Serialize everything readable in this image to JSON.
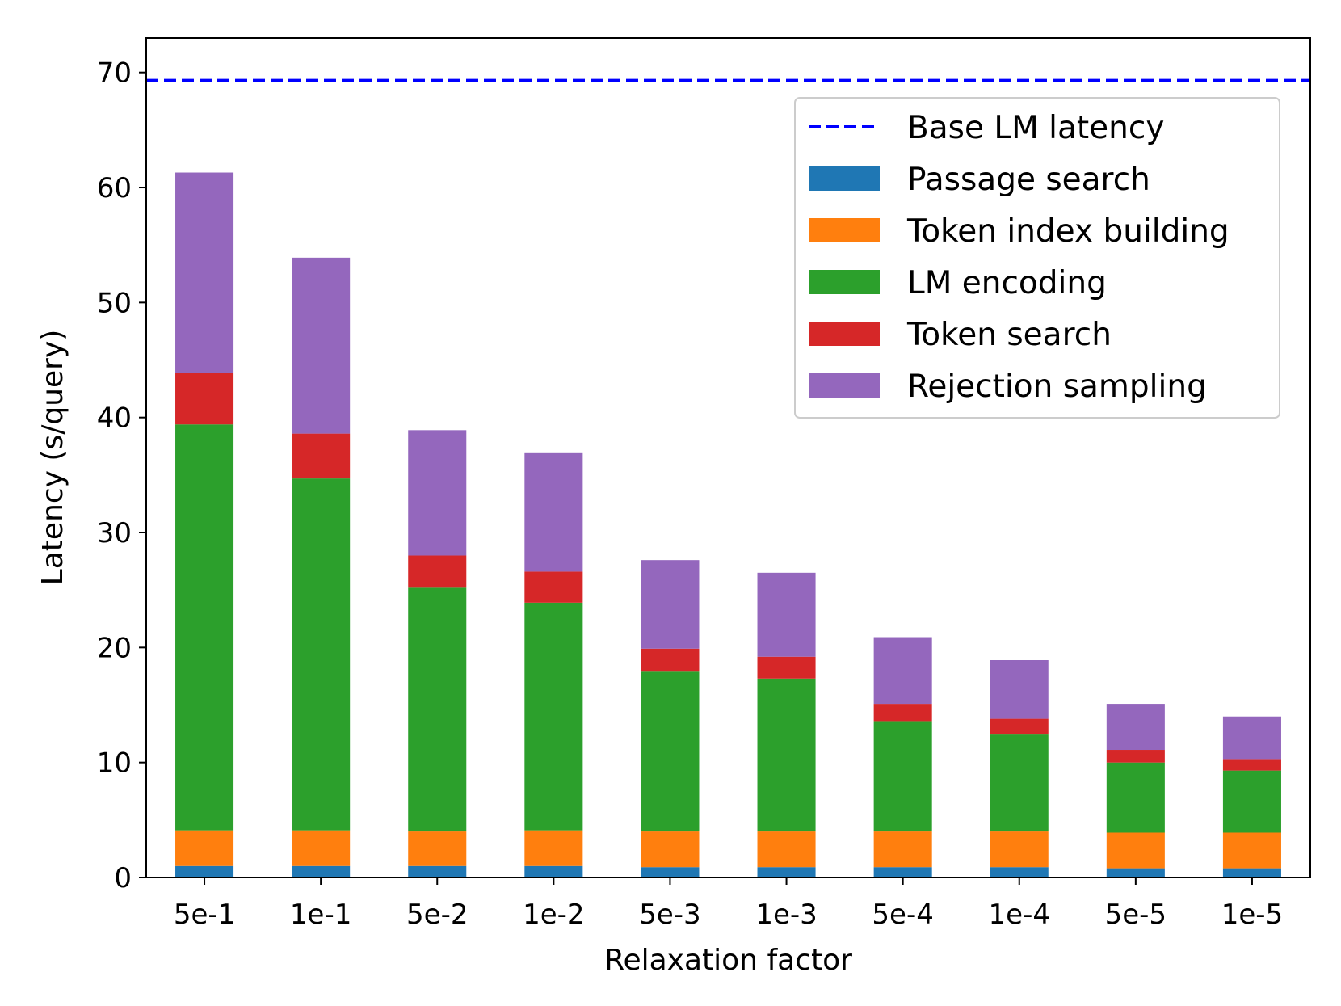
{
  "chart_data": {
    "type": "bar",
    "stacked": true,
    "title": "",
    "xlabel": "Relaxation factor",
    "ylabel": "Latency (s/query)",
    "ylim": [
      0,
      73
    ],
    "yticks": [
      0,
      10,
      20,
      30,
      40,
      50,
      60,
      70
    ],
    "categories": [
      "5e-1",
      "1e-1",
      "5e-2",
      "1e-2",
      "5e-3",
      "1e-3",
      "5e-4",
      "1e-4",
      "5e-5",
      "1e-5"
    ],
    "reference_line": {
      "name": "Base LM latency",
      "value": 69.3,
      "color": "#0000ff",
      "style": "dashed"
    },
    "series": [
      {
        "name": "Passage search",
        "color": "#1f77b4",
        "values": [
          1.0,
          1.0,
          1.0,
          1.0,
          0.9,
          0.9,
          0.9,
          0.9,
          0.8,
          0.8
        ]
      },
      {
        "name": "Token index building",
        "color": "#ff7f0e",
        "values": [
          3.1,
          3.1,
          3.0,
          3.1,
          3.1,
          3.1,
          3.1,
          3.1,
          3.1,
          3.1
        ]
      },
      {
        "name": "LM encoding",
        "color": "#2ca02c",
        "values": [
          35.3,
          30.6,
          21.2,
          19.8,
          13.9,
          13.3,
          9.6,
          8.5,
          6.1,
          5.4
        ]
      },
      {
        "name": "Token search",
        "color": "#d62728",
        "values": [
          4.5,
          3.9,
          2.8,
          2.7,
          2.0,
          1.9,
          1.5,
          1.3,
          1.1,
          1.0
        ]
      },
      {
        "name": "Rejection sampling",
        "color": "#9467bd",
        "values": [
          17.4,
          15.3,
          10.9,
          10.3,
          7.7,
          7.3,
          5.8,
          5.1,
          4.0,
          3.7
        ]
      }
    ],
    "legend_position": "top-right",
    "grid": false
  }
}
